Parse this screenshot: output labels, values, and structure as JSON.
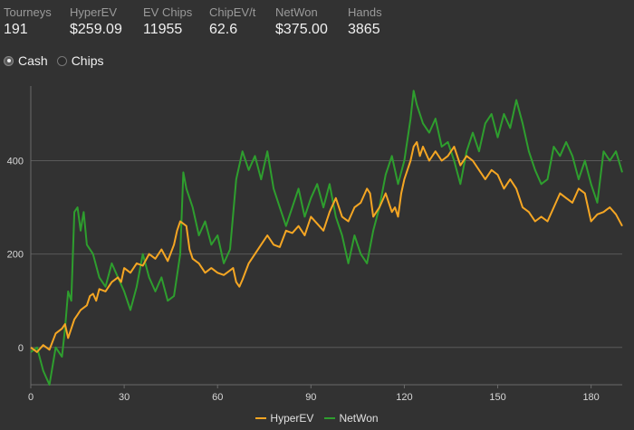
{
  "stats": [
    {
      "label": "Tourneys",
      "value": "191"
    },
    {
      "label": "HyperEV",
      "value": "$259.09"
    },
    {
      "label": "EV Chips",
      "value": "11955"
    },
    {
      "label": "ChipEV/t",
      "value": "62.6"
    },
    {
      "label": "NetWon",
      "value": "$375.00"
    },
    {
      "label": "Hands",
      "value": "3865"
    }
  ],
  "toggle": {
    "options": [
      "Cash",
      "Chips"
    ],
    "selected": "Cash"
  },
  "chart_data": {
    "type": "line",
    "xlim": [
      0,
      190
    ],
    "ylim": [
      -80,
      560
    ],
    "xticks": [
      0,
      30,
      60,
      90,
      120,
      150,
      180
    ],
    "yticks": [
      0,
      200,
      400
    ],
    "grid": "horizontal",
    "legend_position": "bottom-center",
    "series": [
      {
        "name": "HyperEV",
        "color": "#f5a623",
        "points": [
          [
            0,
            0
          ],
          [
            2,
            -10
          ],
          [
            4,
            5
          ],
          [
            6,
            -5
          ],
          [
            8,
            30
          ],
          [
            10,
            40
          ],
          [
            11,
            50
          ],
          [
            12,
            20
          ],
          [
            14,
            60
          ],
          [
            15,
            70
          ],
          [
            16,
            80
          ],
          [
            18,
            90
          ],
          [
            19,
            110
          ],
          [
            20,
            115
          ],
          [
            21,
            100
          ],
          [
            22,
            125
          ],
          [
            24,
            120
          ],
          [
            26,
            140
          ],
          [
            28,
            150
          ],
          [
            29,
            140
          ],
          [
            30,
            170
          ],
          [
            32,
            160
          ],
          [
            34,
            180
          ],
          [
            36,
            175
          ],
          [
            38,
            200
          ],
          [
            40,
            190
          ],
          [
            42,
            210
          ],
          [
            44,
            185
          ],
          [
            46,
            220
          ],
          [
            47,
            250
          ],
          [
            48,
            270
          ],
          [
            50,
            260
          ],
          [
            51,
            210
          ],
          [
            52,
            190
          ],
          [
            54,
            180
          ],
          [
            56,
            160
          ],
          [
            58,
            170
          ],
          [
            60,
            160
          ],
          [
            62,
            155
          ],
          [
            64,
            165
          ],
          [
            65,
            170
          ],
          [
            66,
            140
          ],
          [
            67,
            130
          ],
          [
            68,
            145
          ],
          [
            70,
            180
          ],
          [
            72,
            200
          ],
          [
            74,
            220
          ],
          [
            76,
            240
          ],
          [
            78,
            220
          ],
          [
            80,
            215
          ],
          [
            82,
            250
          ],
          [
            84,
            245
          ],
          [
            86,
            260
          ],
          [
            88,
            240
          ],
          [
            90,
            280
          ],
          [
            92,
            265
          ],
          [
            94,
            250
          ],
          [
            96,
            290
          ],
          [
            98,
            320
          ],
          [
            100,
            280
          ],
          [
            102,
            270
          ],
          [
            104,
            300
          ],
          [
            106,
            310
          ],
          [
            108,
            340
          ],
          [
            109,
            330
          ],
          [
            110,
            280
          ],
          [
            112,
            300
          ],
          [
            114,
            330
          ],
          [
            116,
            290
          ],
          [
            117,
            300
          ],
          [
            118,
            280
          ],
          [
            119,
            330
          ],
          [
            120,
            360
          ],
          [
            122,
            400
          ],
          [
            123,
            430
          ],
          [
            124,
            440
          ],
          [
            125,
            410
          ],
          [
            126,
            430
          ],
          [
            128,
            400
          ],
          [
            130,
            420
          ],
          [
            132,
            400
          ],
          [
            134,
            410
          ],
          [
            136,
            430
          ],
          [
            138,
            390
          ],
          [
            140,
            410
          ],
          [
            142,
            400
          ],
          [
            144,
            380
          ],
          [
            146,
            360
          ],
          [
            148,
            380
          ],
          [
            150,
            370
          ],
          [
            152,
            340
          ],
          [
            154,
            360
          ],
          [
            156,
            340
          ],
          [
            158,
            300
          ],
          [
            160,
            290
          ],
          [
            162,
            270
          ],
          [
            164,
            280
          ],
          [
            166,
            270
          ],
          [
            168,
            300
          ],
          [
            170,
            330
          ],
          [
            172,
            320
          ],
          [
            174,
            310
          ],
          [
            176,
            340
          ],
          [
            178,
            330
          ],
          [
            180,
            270
          ],
          [
            182,
            285
          ],
          [
            184,
            290
          ],
          [
            185,
            295
          ],
          [
            186,
            300
          ],
          [
            188,
            285
          ],
          [
            190,
            260
          ]
        ]
      },
      {
        "name": "NetWon",
        "color": "#2e9e2e",
        "points": [
          [
            0,
            -10
          ],
          [
            2,
            0
          ],
          [
            4,
            -50
          ],
          [
            6,
            -80
          ],
          [
            8,
            0
          ],
          [
            10,
            -20
          ],
          [
            11,
            40
          ],
          [
            12,
            120
          ],
          [
            13,
            100
          ],
          [
            14,
            290
          ],
          [
            15,
            300
          ],
          [
            16,
            250
          ],
          [
            17,
            290
          ],
          [
            18,
            220
          ],
          [
            20,
            200
          ],
          [
            22,
            150
          ],
          [
            24,
            130
          ],
          [
            26,
            180
          ],
          [
            28,
            150
          ],
          [
            30,
            120
          ],
          [
            32,
            80
          ],
          [
            34,
            130
          ],
          [
            36,
            200
          ],
          [
            38,
            150
          ],
          [
            40,
            120
          ],
          [
            42,
            150
          ],
          [
            44,
            100
          ],
          [
            46,
            110
          ],
          [
            48,
            200
          ],
          [
            49,
            375
          ],
          [
            50,
            340
          ],
          [
            52,
            300
          ],
          [
            54,
            240
          ],
          [
            56,
            270
          ],
          [
            58,
            220
          ],
          [
            60,
            240
          ],
          [
            62,
            180
          ],
          [
            64,
            210
          ],
          [
            66,
            360
          ],
          [
            68,
            420
          ],
          [
            70,
            380
          ],
          [
            72,
            410
          ],
          [
            74,
            360
          ],
          [
            76,
            420
          ],
          [
            78,
            340
          ],
          [
            80,
            300
          ],
          [
            82,
            260
          ],
          [
            84,
            300
          ],
          [
            86,
            340
          ],
          [
            88,
            280
          ],
          [
            90,
            320
          ],
          [
            92,
            350
          ],
          [
            94,
            300
          ],
          [
            96,
            350
          ],
          [
            98,
            280
          ],
          [
            100,
            240
          ],
          [
            102,
            180
          ],
          [
            104,
            240
          ],
          [
            106,
            200
          ],
          [
            108,
            180
          ],
          [
            110,
            250
          ],
          [
            112,
            300
          ],
          [
            114,
            370
          ],
          [
            116,
            410
          ],
          [
            118,
            350
          ],
          [
            120,
            400
          ],
          [
            122,
            490
          ],
          [
            123,
            550
          ],
          [
            124,
            520
          ],
          [
            126,
            480
          ],
          [
            128,
            460
          ],
          [
            130,
            490
          ],
          [
            132,
            430
          ],
          [
            134,
            440
          ],
          [
            136,
            400
          ],
          [
            138,
            350
          ],
          [
            140,
            420
          ],
          [
            142,
            460
          ],
          [
            144,
            420
          ],
          [
            146,
            480
          ],
          [
            148,
            500
          ],
          [
            150,
            450
          ],
          [
            152,
            500
          ],
          [
            154,
            470
          ],
          [
            156,
            530
          ],
          [
            158,
            480
          ],
          [
            160,
            420
          ],
          [
            162,
            380
          ],
          [
            164,
            350
          ],
          [
            166,
            360
          ],
          [
            168,
            430
          ],
          [
            170,
            410
          ],
          [
            172,
            440
          ],
          [
            174,
            410
          ],
          [
            176,
            360
          ],
          [
            178,
            400
          ],
          [
            180,
            350
          ],
          [
            182,
            310
          ],
          [
            184,
            420
          ],
          [
            186,
            400
          ],
          [
            188,
            420
          ],
          [
            190,
            375
          ]
        ]
      }
    ]
  }
}
